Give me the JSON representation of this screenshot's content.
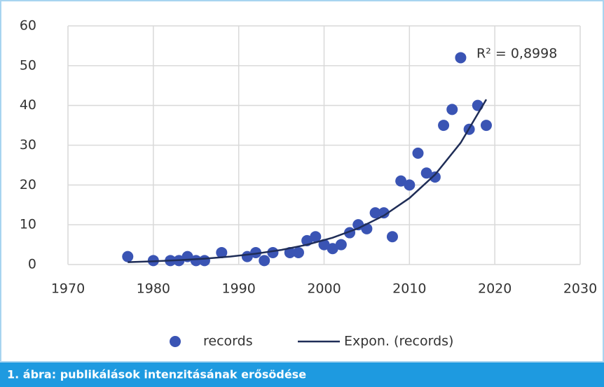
{
  "chart_data": {
    "type": "scatter",
    "caption": "1. ábra: publikálások intenzitásának erősödése",
    "annotation": "R² = 0,8998",
    "xlim": [
      1970,
      2030
    ],
    "xticks": [
      1970,
      1980,
      1990,
      2000,
      2010,
      2020,
      2030
    ],
    "ylim": [
      0,
      60
    ],
    "yticks": [
      0,
      10,
      20,
      30,
      40,
      50,
      60
    ],
    "grid": true,
    "legend": "bottom",
    "series": [
      {
        "name": "records",
        "color": "#3a54b4",
        "x": [
          1977,
          1980,
          1982,
          1983,
          1984,
          1985,
          1986,
          1988,
          1991,
          1992,
          1993,
          1994,
          1996,
          1997,
          1998,
          1999,
          2000,
          2001,
          2002,
          2003,
          2004,
          2005,
          2006,
          2007,
          2008,
          2009,
          2010,
          2011,
          2012,
          2013,
          2014,
          2015,
          2016,
          2017,
          2018,
          2019
        ],
        "values": [
          2,
          1,
          1,
          1,
          2,
          1,
          1,
          3,
          2,
          3,
          1,
          3,
          3,
          3,
          6,
          7,
          5,
          4,
          5,
          8,
          10,
          9,
          13,
          13,
          7,
          21,
          20,
          28,
          23,
          22,
          35,
          39,
          52,
          34,
          40,
          35
        ]
      },
      {
        "name": "Expon. (records)",
        "color": "#1f2d57",
        "line": true,
        "x": [
          1977,
          1980,
          1983,
          1986,
          1989,
          1992,
          1995,
          1998,
          2001,
          2004,
          2007,
          2010,
          2013,
          2016,
          2019
        ],
        "values": [
          0.6,
          0.81,
          1.1,
          1.48,
          2.0,
          2.72,
          3.68,
          4.98,
          6.74,
          9.1,
          12.3,
          16.7,
          22.6,
          30.6,
          41.5
        ]
      }
    ]
  }
}
